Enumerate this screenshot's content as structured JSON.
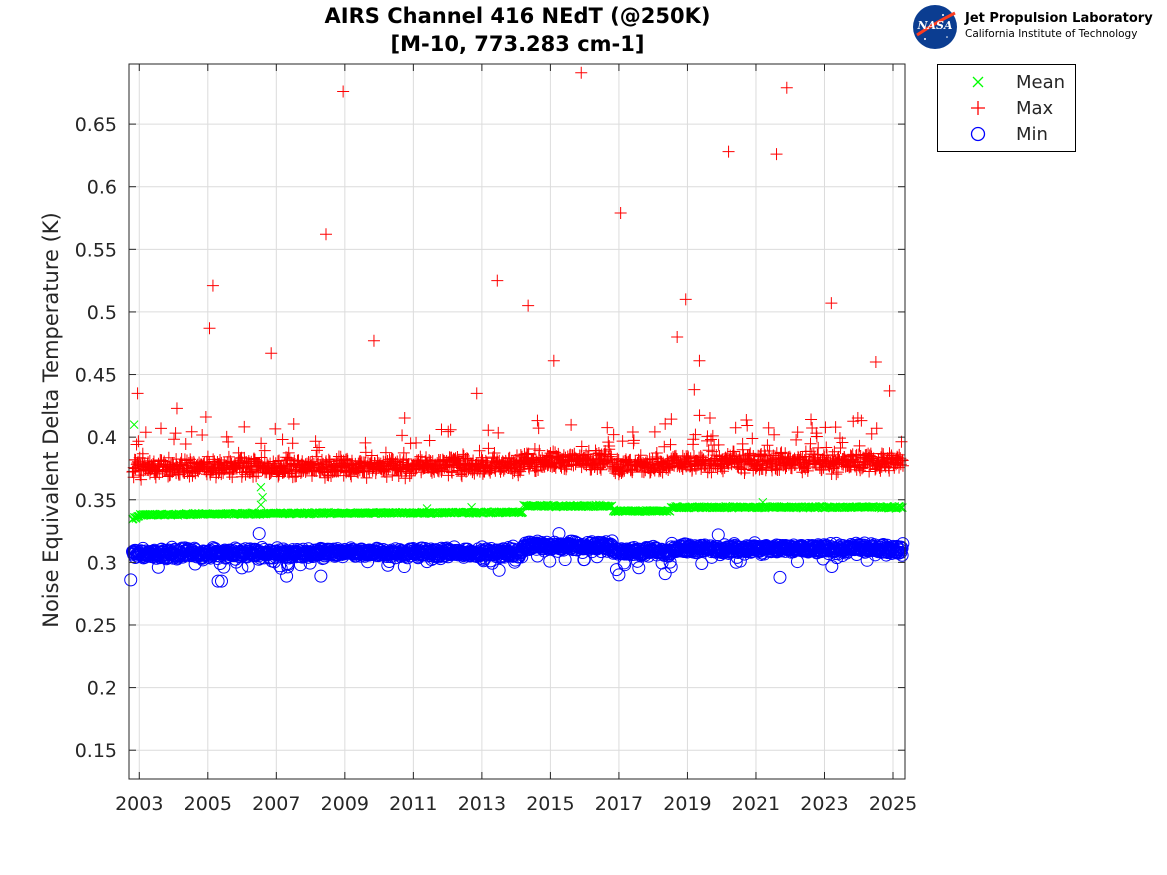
{
  "title": [
    "AIRS Channel 416 NEdT (@250K)",
    "[M-10, 773.283 cm-1]"
  ],
  "logo": {
    "emblem_text": "NASA",
    "name": "Jet Propulsion Laboratory",
    "subtitle": "California Institute of Technology"
  },
  "legend": [
    {
      "label": "Mean",
      "marker": "x",
      "color": "#00ff00"
    },
    {
      "label": "Max",
      "marker": "+",
      "color": "#ff0000"
    },
    {
      "label": "Min",
      "marker": "o",
      "color": "#0000ff"
    }
  ],
  "chart_data": {
    "type": "scatter",
    "title": "AIRS Channel 416 NEdT (@250K) [M-10, 773.283 cm-1]",
    "xlabel": "",
    "ylabel": "Noise Equivalent Delta Temperature (K)",
    "xlim": [
      2002.7,
      2025.35
    ],
    "ylim": [
      0.127,
      0.698
    ],
    "xticks": [
      2003,
      2005,
      2007,
      2009,
      2011,
      2013,
      2015,
      2017,
      2019,
      2021,
      2023,
      2025
    ],
    "yticks": [
      0.15,
      0.2,
      0.25,
      0.3,
      0.35,
      0.4,
      0.45,
      0.5,
      0.55,
      0.6,
      0.65
    ],
    "grid": true,
    "legend_position": "outside-top-right",
    "series": [
      {
        "name": "Mean",
        "marker": "x",
        "color": "#00ff00",
        "level_segments": [
          {
            "x": [
              2002.7,
              2003.0
            ],
            "y": [
              0.333,
              0.337
            ]
          },
          {
            "x": [
              2003.0,
              2006.5
            ],
            "y": [
              0.338,
              0.339
            ]
          },
          {
            "x": [
              2006.5,
              2014.2
            ],
            "y": [
              0.339,
              0.34
            ]
          },
          {
            "x": [
              2014.2,
              2016.8
            ],
            "y": [
              0.345,
              0.345
            ]
          },
          {
            "x": [
              2016.8,
              2018.5
            ],
            "y": [
              0.341,
              0.341
            ]
          },
          {
            "x": [
              2018.5,
              2025.35
            ],
            "y": [
              0.344,
              0.344
            ]
          }
        ],
        "notable_points": [
          {
            "x": 2002.85,
            "y": 0.41
          },
          {
            "x": 2006.55,
            "y": 0.36
          },
          {
            "x": 2006.6,
            "y": 0.352
          },
          {
            "x": 2006.55,
            "y": 0.346
          },
          {
            "x": 2011.4,
            "y": 0.343
          },
          {
            "x": 2012.7,
            "y": 0.344
          },
          {
            "x": 2021.2,
            "y": 0.348
          }
        ]
      },
      {
        "name": "Max",
        "marker": "+",
        "color": "#ff0000",
        "level_segments": [
          {
            "x": [
              2002.7,
              2014.2
            ],
            "y": [
              0.375,
              0.378
            ]
          },
          {
            "x": [
              2014.2,
              2016.8
            ],
            "y": [
              0.381,
              0.381
            ]
          },
          {
            "x": [
              2016.8,
              2018.5
            ],
            "y": [
              0.377,
              0.377
            ]
          },
          {
            "x": [
              2018.5,
              2025.35
            ],
            "y": [
              0.38,
              0.38
            ]
          }
        ],
        "notable_points": [
          {
            "x": 2005.05,
            "y": 0.487
          },
          {
            "x": 2005.15,
            "y": 0.521
          },
          {
            "x": 2006.85,
            "y": 0.467
          },
          {
            "x": 2008.45,
            "y": 0.562
          },
          {
            "x": 2008.95,
            "y": 0.676
          },
          {
            "x": 2009.85,
            "y": 0.477
          },
          {
            "x": 2013.45,
            "y": 0.525
          },
          {
            "x": 2014.35,
            "y": 0.505
          },
          {
            "x": 2015.1,
            "y": 0.461
          },
          {
            "x": 2015.9,
            "y": 0.691
          },
          {
            "x": 2017.05,
            "y": 0.579
          },
          {
            "x": 2018.7,
            "y": 0.48
          },
          {
            "x": 2018.95,
            "y": 0.51
          },
          {
            "x": 2019.35,
            "y": 0.461
          },
          {
            "x": 2020.2,
            "y": 0.628
          },
          {
            "x": 2021.6,
            "y": 0.626
          },
          {
            "x": 2021.9,
            "y": 0.679
          },
          {
            "x": 2023.2,
            "y": 0.507
          },
          {
            "x": 2024.5,
            "y": 0.46
          },
          {
            "x": 2002.95,
            "y": 0.435
          },
          {
            "x": 2004.1,
            "y": 0.423
          },
          {
            "x": 2012.85,
            "y": 0.435
          },
          {
            "x": 2024.9,
            "y": 0.437
          },
          {
            "x": 2019.2,
            "y": 0.438
          }
        ]
      },
      {
        "name": "Min",
        "marker": "o",
        "color": "#0000ff",
        "level_segments": [
          {
            "x": [
              2002.7,
              2014.2
            ],
            "y": [
              0.307,
              0.308
            ]
          },
          {
            "x": [
              2014.2,
              2016.8
            ],
            "y": [
              0.313,
              0.313
            ]
          },
          {
            "x": [
              2016.8,
              2018.5
            ],
            "y": [
              0.309,
              0.309
            ]
          },
          {
            "x": [
              2018.5,
              2025.35
            ],
            "y": [
              0.311,
              0.311
            ]
          }
        ],
        "notable_points": [
          {
            "x": 2002.75,
            "y": 0.286
          },
          {
            "x": 2005.3,
            "y": 0.285
          },
          {
            "x": 2005.4,
            "y": 0.285
          },
          {
            "x": 2007.3,
            "y": 0.289
          },
          {
            "x": 2008.3,
            "y": 0.289
          },
          {
            "x": 2017.0,
            "y": 0.29
          },
          {
            "x": 2018.35,
            "y": 0.291
          },
          {
            "x": 2021.7,
            "y": 0.288
          },
          {
            "x": 2006.5,
            "y": 0.323
          },
          {
            "x": 2015.25,
            "y": 0.323
          },
          {
            "x": 2019.9,
            "y": 0.322
          }
        ]
      }
    ]
  }
}
